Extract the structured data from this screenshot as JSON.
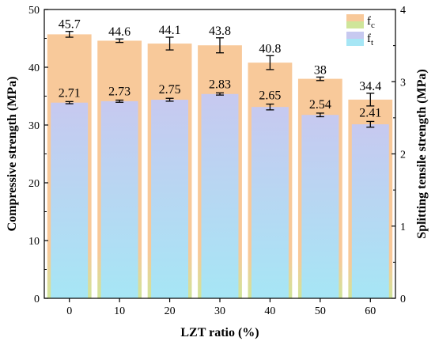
{
  "chart_data": {
    "type": "bar",
    "categories": [
      "0",
      "10",
      "20",
      "30",
      "40",
      "50",
      "60"
    ],
    "xlabel": "LZT ratio (%)",
    "ylabel_left": "Compressive strength (MPa)",
    "ylabel_right": "Splitting tensile strength (MPa)",
    "ylim_left": [
      0,
      50
    ],
    "ylim_right": [
      0,
      4
    ],
    "yticks_left": [
      "0",
      "10",
      "20",
      "30",
      "40",
      "50"
    ],
    "yticks_right": [
      "0",
      "1",
      "2",
      "3",
      "4"
    ],
    "legend_position": "top-right",
    "series": [
      {
        "name": "fc",
        "axis": "left",
        "color": "#f8c99a",
        "values": [
          45.7,
          44.6,
          44.1,
          43.8,
          40.8,
          38,
          34.4
        ],
        "labels": [
          "45.7",
          "44.6",
          "44.1",
          "43.8",
          "40.8",
          "38",
          "34.4"
        ],
        "errors": [
          0.5,
          0.3,
          1.1,
          1.3,
          1.2,
          0.3,
          1.1
        ]
      },
      {
        "name": "ft",
        "axis": "right",
        "color": "#a6e6f5",
        "values": [
          2.71,
          2.73,
          2.75,
          2.83,
          2.65,
          2.54,
          2.41
        ],
        "labels": [
          "2.71",
          "2.73",
          "2.75",
          "2.83",
          "2.65",
          "2.54",
          "2.41"
        ],
        "errors": [
          0.015,
          0.015,
          0.02,
          0.015,
          0.04,
          0.025,
          0.04
        ]
      }
    ],
    "legend": [
      {
        "base": "f",
        "sub": "c",
        "swatch_colors": [
          "#f8c99a",
          "#cfe59a"
        ]
      },
      {
        "base": "f",
        "sub": "t",
        "swatch_colors": [
          "#c7c9f0",
          "#a6e6f5"
        ]
      }
    ]
  }
}
